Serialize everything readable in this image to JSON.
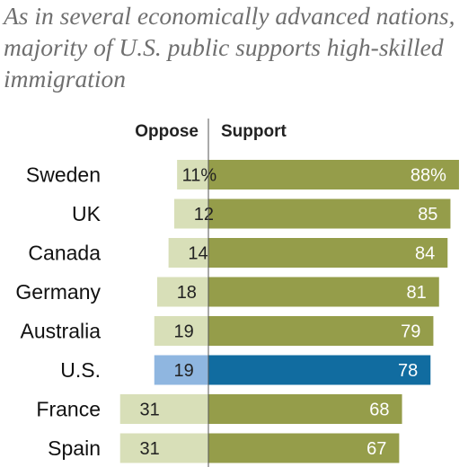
{
  "title": "As in several economically advanced nations, majority of U.S. public supports high-skilled immigration",
  "colors": {
    "support": "#959d4a",
    "oppose": "#d8dfb8",
    "support_highlight": "#116ca0",
    "oppose_highlight": "#8fb6e0",
    "axis": "#555555"
  },
  "chart_data": {
    "type": "bar",
    "title": "As in several economically advanced nations, majority of U.S. public supports high-skilled immigration",
    "categories": [
      "Sweden",
      "UK",
      "Canada",
      "Germany",
      "Australia",
      "U.S.",
      "France",
      "Spain"
    ],
    "highlight": "U.S.",
    "series": [
      {
        "name": "Oppose",
        "values": [
          11,
          12,
          14,
          18,
          19,
          19,
          31,
          31
        ],
        "labels": [
          "11%",
          "12",
          "14",
          "18",
          "19",
          "19",
          "31",
          "31"
        ]
      },
      {
        "name": "Support",
        "values": [
          88,
          85,
          84,
          81,
          79,
          78,
          68,
          67
        ],
        "labels": [
          "88%",
          "85",
          "84",
          "81",
          "79",
          "78",
          "68",
          "67"
        ]
      }
    ],
    "orientation": "diverging-horizontal",
    "grid": false,
    "legend": "column headers above bars"
  }
}
